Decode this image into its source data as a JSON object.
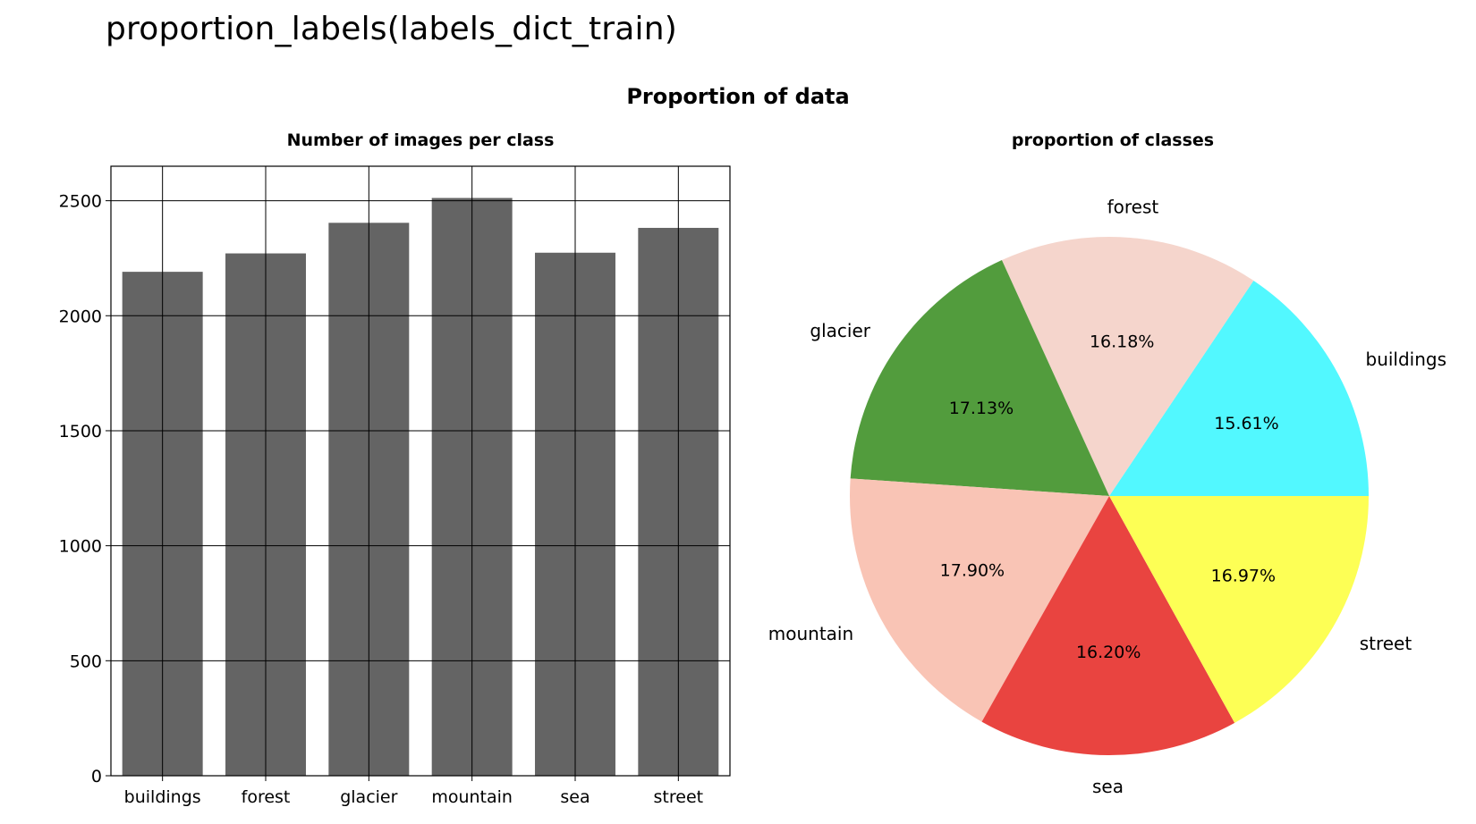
{
  "code_line": "proportion_labels(labels_dict_train)",
  "figure_title": "Proportion of data",
  "chart_data": [
    {
      "type": "bar",
      "title": "Number of images per class",
      "xlabel": "",
      "ylabel": "",
      "categories": [
        "buildings",
        "forest",
        "glacier",
        "mountain",
        "sea",
        "street"
      ],
      "values": [
        2191,
        2271,
        2404,
        2512,
        2274,
        2382
      ],
      "ylim": [
        0,
        2650
      ],
      "yticks": [
        0,
        500,
        1000,
        1500,
        2000,
        2500
      ],
      "grid": true,
      "bar_color": "#646464",
      "grid_color": "#000000"
    },
    {
      "type": "pie",
      "title": "proportion of classes",
      "labels": [
        "buildings",
        "forest",
        "glacier",
        "mountain",
        "sea",
        "street"
      ],
      "values": [
        15.61,
        16.18,
        17.13,
        17.9,
        16.2,
        16.97
      ],
      "percent_labels": [
        "15.61%",
        "16.18%",
        "17.13%",
        "17.90%",
        "16.20%",
        "16.97%"
      ],
      "colors": [
        "#52f8ff",
        "#f5d5cc",
        "#529c3d",
        "#f9c4b5",
        "#e94440",
        "#fdff55"
      ],
      "start_angle_deg": 0,
      "direction": "counterclockwise"
    }
  ]
}
